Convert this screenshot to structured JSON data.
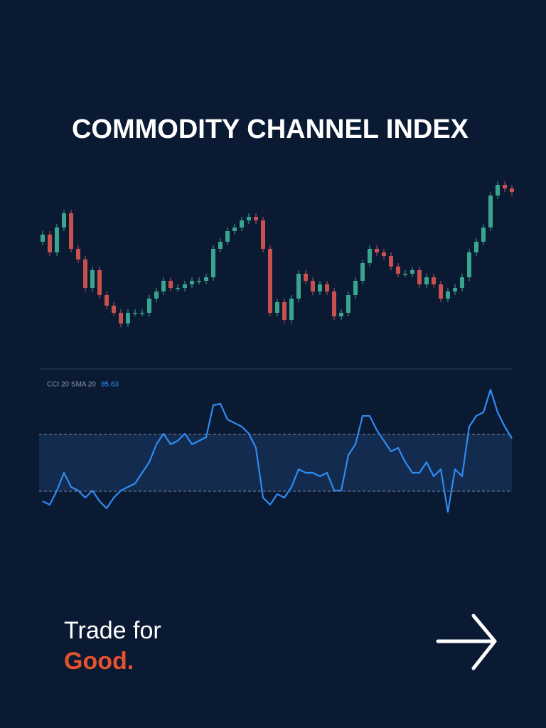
{
  "chart_data": [
    {
      "type": "candlestick",
      "title": "COMMODITY CHANNEL INDEX",
      "up_color": "#3aa58e",
      "down_color": "#c8504f",
      "ylim": [
        20,
        260
      ],
      "open": [
        160,
        170,
        145,
        180,
        200,
        150,
        135,
        95,
        120,
        85,
        70,
        60,
        45,
        60,
        60,
        60,
        80,
        90,
        105,
        95,
        95,
        100,
        105,
        105,
        110,
        150,
        160,
        175,
        180,
        190,
        195,
        190,
        150,
        60,
        75,
        50,
        80,
        115,
        105,
        90,
        100,
        90,
        55,
        60,
        85,
        105,
        130,
        150,
        145,
        140,
        125,
        115,
        115,
        120,
        100,
        110,
        100,
        80,
        90,
        95,
        110,
        145,
        160,
        180,
        225,
        240,
        235
      ],
      "high": [
        175,
        175,
        185,
        205,
        205,
        155,
        140,
        125,
        125,
        90,
        75,
        65,
        65,
        65,
        65,
        85,
        95,
        110,
        110,
        100,
        105,
        110,
        110,
        115,
        155,
        165,
        180,
        185,
        195,
        200,
        200,
        195,
        155,
        80,
        80,
        85,
        120,
        120,
        110,
        105,
        105,
        95,
        65,
        90,
        110,
        135,
        155,
        155,
        150,
        145,
        130,
        120,
        125,
        125,
        115,
        115,
        105,
        95,
        100,
        115,
        150,
        165,
        185,
        230,
        245,
        245,
        240
      ],
      "low": [
        155,
        140,
        140,
        175,
        145,
        130,
        90,
        90,
        80,
        65,
        55,
        40,
        40,
        55,
        55,
        55,
        75,
        85,
        90,
        90,
        90,
        95,
        100,
        100,
        105,
        145,
        155,
        170,
        175,
        185,
        185,
        145,
        55,
        55,
        45,
        45,
        75,
        100,
        85,
        85,
        85,
        50,
        50,
        55,
        80,
        100,
        125,
        140,
        135,
        120,
        110,
        110,
        110,
        95,
        95,
        95,
        75,
        75,
        85,
        90,
        105,
        140,
        155,
        175,
        220,
        230,
        225
      ],
      "close": [
        170,
        145,
        180,
        200,
        150,
        135,
        95,
        120,
        85,
        70,
        60,
        45,
        60,
        60,
        60,
        80,
        90,
        105,
        95,
        95,
        100,
        105,
        105,
        110,
        150,
        160,
        175,
        180,
        190,
        195,
        190,
        150,
        60,
        75,
        50,
        80,
        115,
        105,
        90,
        100,
        90,
        55,
        60,
        85,
        105,
        130,
        150,
        145,
        140,
        125,
        115,
        115,
        120,
        100,
        110,
        100,
        80,
        90,
        95,
        110,
        145,
        160,
        180,
        225,
        240,
        235,
        230
      ]
    },
    {
      "type": "line",
      "title": "CCI 20 SMA 20",
      "color": "#2f8cf0",
      "band_color": "#142b50",
      "ylim": [
        -240,
        280
      ],
      "band": [
        -100,
        100
      ],
      "values": [
        -135,
        -147.5,
        -97.5,
        -35,
        -85,
        -97.5,
        -122.5,
        -97.5,
        -135,
        -160,
        -122.5,
        -97.5,
        -85,
        -72.5,
        -35,
        2.5,
        65,
        102.5,
        65,
        77.5,
        102.5,
        65,
        77.5,
        90,
        202.5,
        207.5,
        152.5,
        140,
        127.5,
        102.5,
        52.5,
        -122.5,
        -147.5,
        -110,
        -122.5,
        -85,
        -22.5,
        -35,
        -35,
        -47.5,
        -35,
        -97.5,
        -97.5,
        27.5,
        65,
        165,
        165,
        115,
        77.5,
        40,
        52.5,
        2.5,
        -35,
        -35,
        2.5,
        -47.5,
        -22.5,
        -172.5,
        -22.5,
        -47.5,
        127.5,
        165,
        177.5,
        257.5,
        177.5,
        127.5,
        85.63
      ]
    }
  ],
  "brand": {
    "line1": "Trade for",
    "line2": "Good."
  }
}
